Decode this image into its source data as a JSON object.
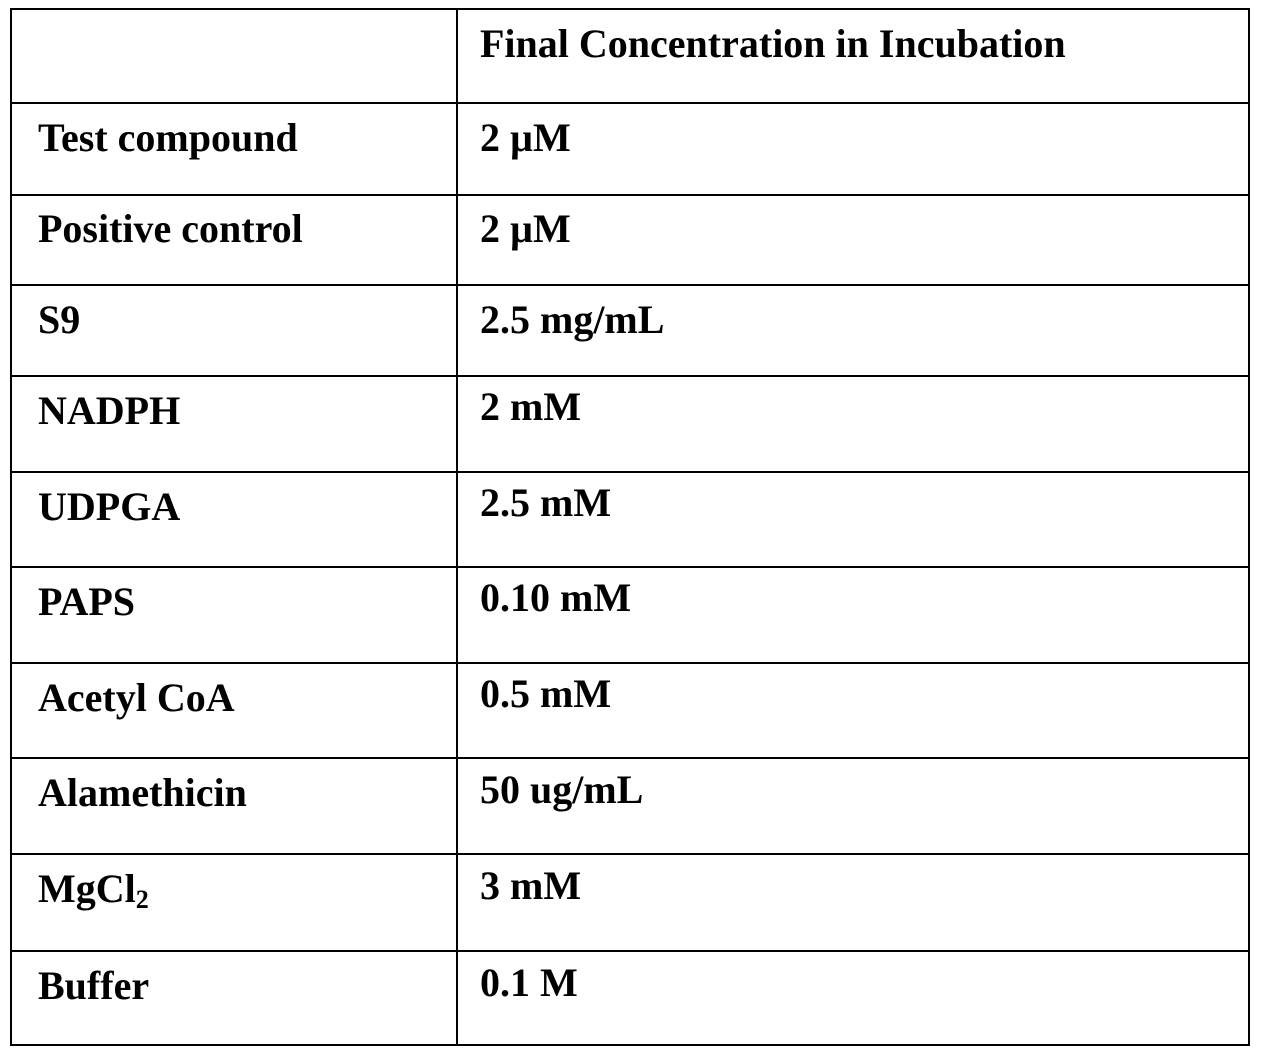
{
  "table": {
    "header": {
      "col1": "",
      "col2": "Final Concentration in Incubation"
    },
    "rows": [
      {
        "component": "Test compound",
        "concentration": "2 µM"
      },
      {
        "component": "Positive control",
        "concentration": "2 µM"
      },
      {
        "component": "S9",
        "concentration": "2.5 mg/mL"
      },
      {
        "component": "NADPH",
        "concentration": "2 mM"
      },
      {
        "component": "UDPGA",
        "concentration": "2.5 mM"
      },
      {
        "component": "PAPS",
        "concentration": "0.10 mM"
      },
      {
        "component": "Acetyl CoA",
        "concentration": "0.5 mM"
      },
      {
        "component": "Alamethicin",
        "concentration": "50 ug/mL"
      },
      {
        "component_base": "MgCl",
        "component_sub": "2",
        "concentration": "3 mM"
      },
      {
        "component": "Buffer",
        "concentration": "0.1 M"
      }
    ]
  }
}
